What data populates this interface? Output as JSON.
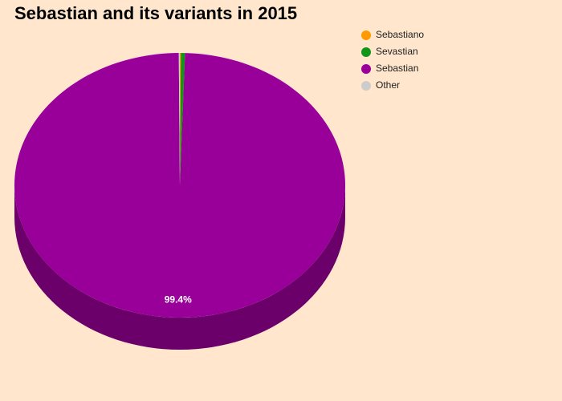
{
  "chart_data": {
    "type": "pie",
    "title": "Sebastian and its variants in 2015",
    "categories": [
      "Sebastiano",
      "Sevastian",
      "Sebastian",
      "Other"
    ],
    "values": [
      0.1,
      0.4,
      99.4,
      0.1
    ],
    "value_labels": [
      null,
      null,
      "99.4%",
      null
    ],
    "colors": [
      "#ff9900",
      "#109618",
      "#990099",
      "#cccccc"
    ],
    "legend": "top-right"
  }
}
